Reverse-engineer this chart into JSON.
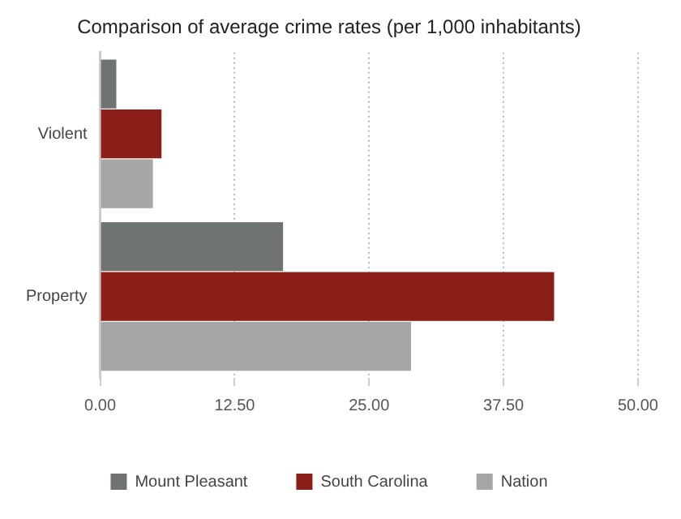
{
  "chart_data": {
    "type": "bar",
    "orientation": "horizontal",
    "title": "Comparison of average crime rates (per 1,000 inhabitants)",
    "categories": [
      "Violent",
      "Property"
    ],
    "series": [
      {
        "name": "Mount Pleasant",
        "color": "#6f7471",
        "values": [
          1.5,
          17.0
        ]
      },
      {
        "name": "South Carolina",
        "color": "#8b1e17",
        "values": [
          5.7,
          42.2
        ]
      },
      {
        "name": "Nation",
        "color": "#a6a6a6",
        "values": [
          4.9,
          28.9
        ]
      }
    ],
    "xlim": [
      0,
      50
    ],
    "xticks": [
      {
        "value": 0,
        "label": "0.00"
      },
      {
        "value": 12.5,
        "label": "12.50"
      },
      {
        "value": 25,
        "label": "25.00"
      },
      {
        "value": 37.5,
        "label": "37.50"
      },
      {
        "value": 50,
        "label": "50.00"
      }
    ],
    "grid": "x",
    "legend": "bottom"
  }
}
